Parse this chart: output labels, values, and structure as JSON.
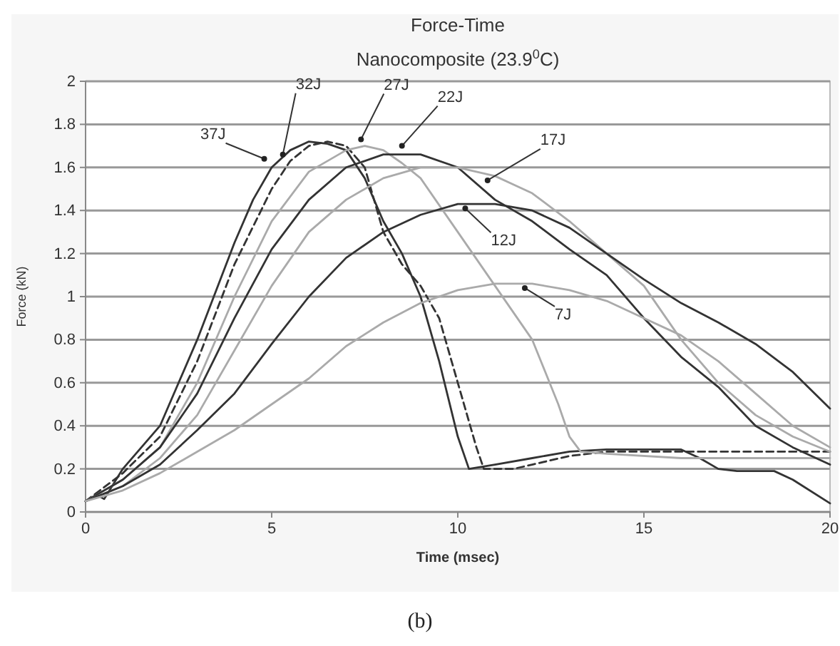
{
  "chart_data": {
    "type": "line",
    "title": "Force-Time",
    "subtitle": "Nanocomposite (23.9$^{0}$C)",
    "xlabel": "Time (msec)",
    "ylabel": "Force (kN)",
    "xlim": [
      0,
      20
    ],
    "xticks": [
      0,
      5,
      10,
      15,
      20
    ],
    "ylim": [
      0,
      2
    ],
    "yticks": [
      0,
      0.2,
      0.4,
      0.6,
      0.8,
      1,
      1.2,
      1.4,
      1.6,
      1.8,
      2
    ],
    "grid": "y",
    "series": [
      {
        "color": "#333333",
        "line_style": "solid",
        "x": [
          0,
          0.3,
          0.5,
          1,
          2,
          3,
          4,
          4.5,
          5,
          5.5,
          6,
          6.5,
          7,
          7.5,
          8,
          8.5,
          9,
          9.5,
          10,
          10.3,
          11,
          12,
          13,
          14,
          15,
          16,
          16.5,
          17,
          17.5,
          18.5,
          19,
          20
        ],
        "values": [
          0.05,
          0.08,
          0.06,
          0.2,
          0.4,
          0.8,
          1.25,
          1.45,
          1.6,
          1.68,
          1.72,
          1.71,
          1.68,
          1.55,
          1.35,
          1.2,
          1,
          0.7,
          0.35,
          0.2,
          0.22,
          0.25,
          0.28,
          0.29,
          0.29,
          0.29,
          0.25,
          0.2,
          0.19,
          0.19,
          0.15,
          0.04
        ]
      },
      {
        "color": "#333333",
        "line_style": "dashed",
        "x": [
          0,
          1,
          2,
          3,
          4,
          5,
          5.5,
          6,
          6.5,
          7,
          7.5,
          8,
          8.5,
          9,
          9.5,
          10,
          10.5,
          10.7,
          11.5,
          12,
          13,
          14,
          16,
          17,
          20
        ],
        "values": [
          0.05,
          0.18,
          0.35,
          0.7,
          1.15,
          1.5,
          1.63,
          1.7,
          1.72,
          1.7,
          1.6,
          1.3,
          1.15,
          1.05,
          0.9,
          0.6,
          0.3,
          0.2,
          0.2,
          0.22,
          0.26,
          0.28,
          0.28,
          0.28,
          0.28
        ]
      },
      {
        "color": "#aaaaaa",
        "line_style": "solid",
        "x": [
          0,
          1,
          2,
          3,
          4,
          5,
          6,
          7,
          7.5,
          8,
          8.5,
          9,
          10,
          11,
          12,
          12.7,
          13,
          13.3,
          14,
          16,
          20
        ],
        "values": [
          0.05,
          0.15,
          0.3,
          0.6,
          1,
          1.35,
          1.58,
          1.68,
          1.7,
          1.68,
          1.62,
          1.55,
          1.3,
          1.05,
          0.8,
          0.5,
          0.35,
          0.28,
          0.27,
          0.25,
          0.25
        ]
      },
      {
        "color": "#333333",
        "line_style": "solid",
        "x": [
          0,
          1,
          2,
          3,
          4,
          5,
          6,
          7,
          8,
          9,
          10,
          11,
          12,
          13,
          14,
          15,
          16,
          17,
          18,
          19,
          20
        ],
        "values": [
          0.05,
          0.15,
          0.3,
          0.55,
          0.9,
          1.22,
          1.45,
          1.6,
          1.66,
          1.66,
          1.6,
          1.45,
          1.35,
          1.22,
          1.1,
          0.9,
          0.72,
          0.58,
          0.4,
          0.3,
          0.22
        ]
      },
      {
        "color": "#aaaaaa",
        "line_style": "solid",
        "x": [
          0,
          1,
          2,
          3,
          4,
          5,
          6,
          7,
          8,
          9,
          10,
          11,
          12,
          13,
          14,
          15,
          16,
          17,
          18,
          19,
          20
        ],
        "values": [
          0.05,
          0.12,
          0.25,
          0.45,
          0.75,
          1.05,
          1.3,
          1.45,
          1.55,
          1.6,
          1.6,
          1.56,
          1.48,
          1.35,
          1.2,
          1.05,
          0.8,
          0.6,
          0.45,
          0.35,
          0.28
        ]
      },
      {
        "color": "#333333",
        "line_style": "solid",
        "x": [
          0,
          1,
          2,
          3,
          4,
          5,
          6,
          7,
          8,
          9,
          10,
          11,
          12,
          13,
          14,
          15,
          16,
          17,
          18,
          19,
          20
        ],
        "values": [
          0.05,
          0.12,
          0.22,
          0.38,
          0.55,
          0.78,
          1,
          1.18,
          1.3,
          1.38,
          1.43,
          1.43,
          1.4,
          1.32,
          1.2,
          1.08,
          0.97,
          0.88,
          0.78,
          0.65,
          0.48
        ]
      },
      {
        "color": "#aaaaaa",
        "line_style": "solid",
        "x": [
          0,
          1,
          2,
          3,
          4,
          5,
          6,
          7,
          8,
          9,
          10,
          11,
          12,
          13,
          14,
          15,
          16,
          17,
          18,
          19,
          20
        ],
        "values": [
          0.05,
          0.1,
          0.18,
          0.28,
          0.38,
          0.5,
          0.62,
          0.77,
          0.88,
          0.97,
          1.03,
          1.06,
          1.06,
          1.03,
          0.98,
          0.9,
          0.82,
          0.7,
          0.55,
          0.4,
          0.3
        ]
      }
    ],
    "annotations": [
      {
        "text": "37J",
        "x": 4.8,
        "y": 1.64
      },
      {
        "text": "32J",
        "x": 5.3,
        "y": 1.66
      },
      {
        "text": "27J",
        "x": 7.4,
        "y": 1.73
      },
      {
        "text": "22J",
        "x": 8.5,
        "y": 1.7
      },
      {
        "text": "17J",
        "x": 10.8,
        "y": 1.54
      },
      {
        "text": "12J",
        "x": 10.2,
        "y": 1.41
      },
      {
        "text": "7J",
        "x": 11.8,
        "y": 1.04
      },
      "(b)"
    ]
  }
}
